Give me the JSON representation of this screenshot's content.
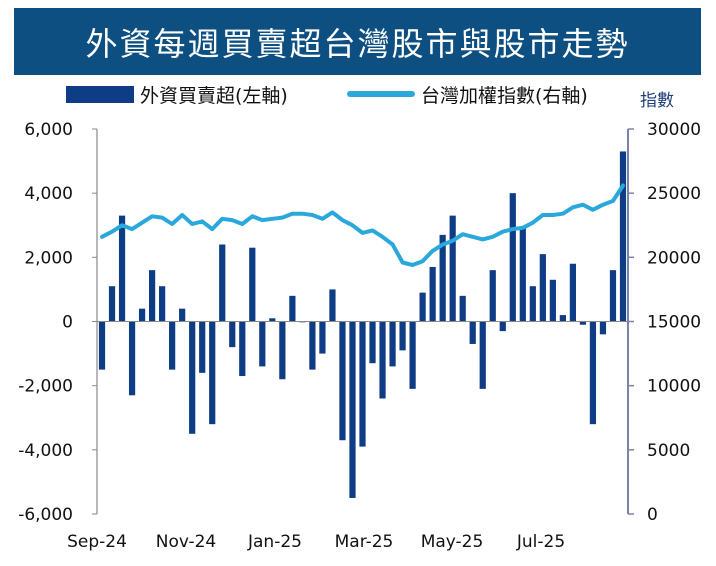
{
  "title": "外資每週買賣超台灣股市與股市走勢",
  "legend": {
    "bar_label": "外資買賣超(左軸)",
    "line_label": "台灣加權指數(右軸)"
  },
  "right_axis_unit": "指數",
  "colors": {
    "title_bg": "#0e4f82",
    "bar": "#0e3c85",
    "line": "#2aa8dc",
    "right_axis": "#7b84a8"
  },
  "chart_data": {
    "type": "bar+line",
    "title": "外資每週買賣超台灣股市與股市走勢",
    "x_tick_labels": [
      "Sep-24",
      "Nov-24",
      "Jan-25",
      "Mar-25",
      "May-25",
      "Jul-25"
    ],
    "left_axis": {
      "ylim": [
        -6000,
        6000
      ],
      "ticks": [
        "-6,000",
        "-4,000",
        "-2,000",
        "0",
        "2,000",
        "4,000",
        "6,000"
      ]
    },
    "right_axis": {
      "ylim": [
        0,
        30000
      ],
      "ticks": [
        "0",
        "5000",
        "10000",
        "15000",
        "20000",
        "25000",
        "30000"
      ]
    },
    "series": [
      {
        "name": "外資買賣超(左軸)",
        "axis": "left",
        "kind": "bar",
        "values": [
          -1500,
          1100,
          3300,
          -2300,
          400,
          1600,
          1100,
          -1500,
          400,
          -3500,
          -1600,
          -3200,
          2400,
          -800,
          -1700,
          2300,
          -1400,
          100,
          -1800,
          800,
          0,
          -1500,
          -1000,
          1000,
          -3700,
          -5500,
          -3900,
          -1300,
          -2400,
          -1400,
          -900,
          -2100,
          900,
          1700,
          2700,
          3300,
          800,
          -700,
          -2100,
          1600,
          -300,
          4000,
          2900,
          1100,
          2100,
          1300,
          200,
          1800,
          -100,
          -3200,
          -400,
          1600,
          5300
        ]
      },
      {
        "name": "台灣加權指數(右軸)",
        "axis": "right",
        "kind": "line",
        "values": [
          21600,
          22000,
          22500,
          22200,
          22700,
          23200,
          23100,
          22600,
          23300,
          22600,
          22800,
          22200,
          23000,
          22900,
          22600,
          23200,
          22900,
          23000,
          23100,
          23400,
          23400,
          23300,
          23000,
          23500,
          22900,
          22500,
          21900,
          22100,
          21600,
          21000,
          19600,
          19400,
          19700,
          20500,
          21000,
          21300,
          21800,
          21600,
          21400,
          21600,
          22000,
          22200,
          22300,
          22700,
          23300,
          23300,
          23400,
          23900,
          24100,
          23700,
          24100,
          24400,
          25600
        ]
      }
    ],
    "grid": false,
    "legend_position": "top"
  }
}
